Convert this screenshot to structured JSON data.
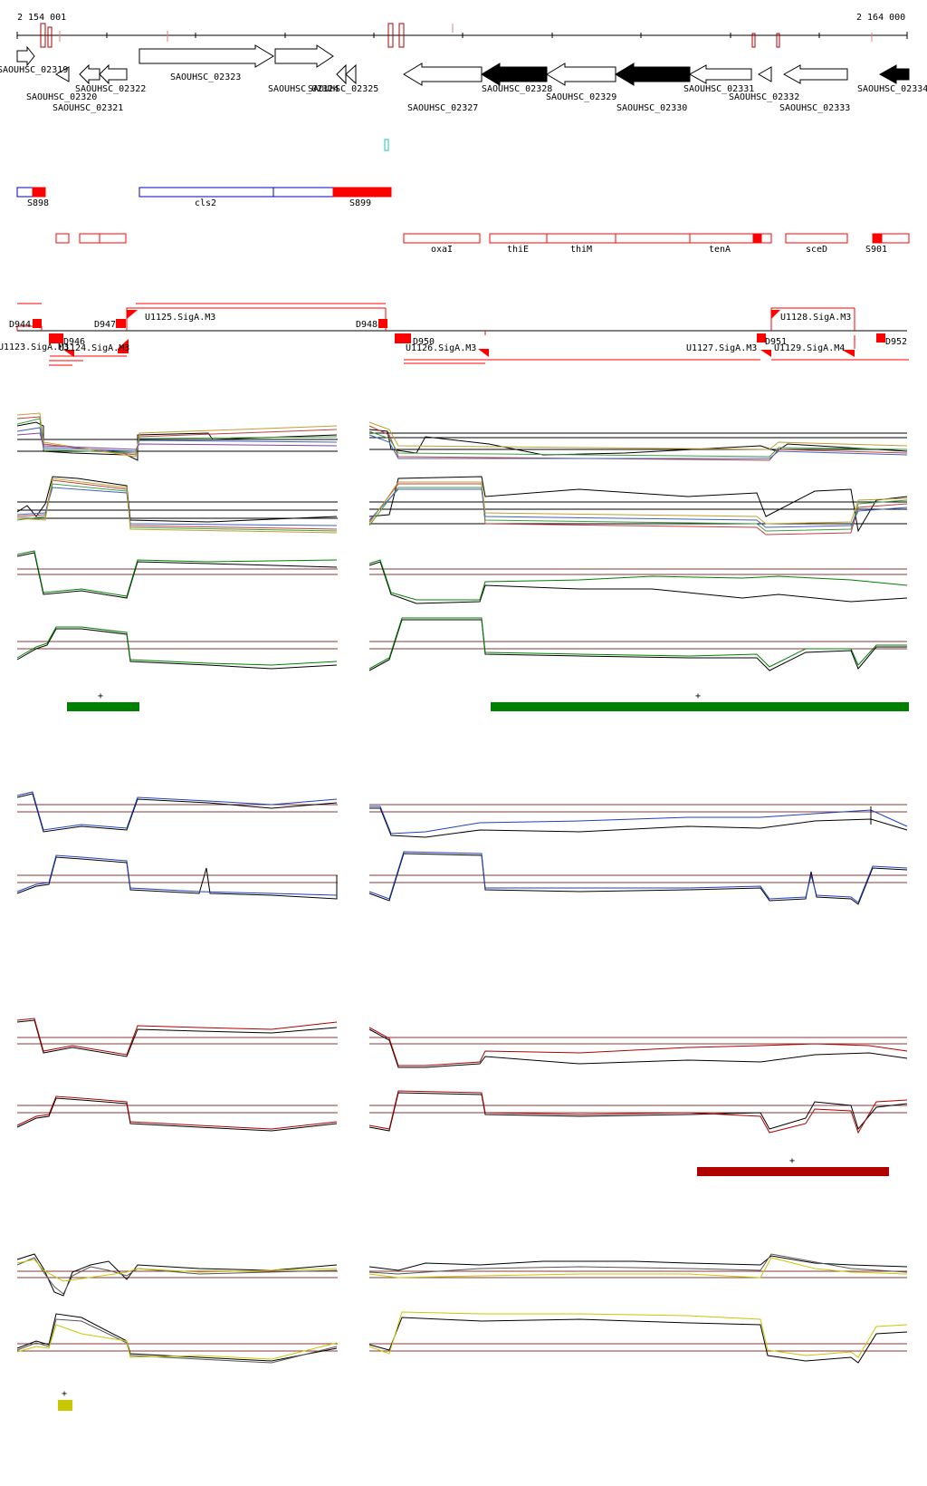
{
  "coords": {
    "start": "2 154 001",
    "end": "2 164 000"
  },
  "genes": [
    {
      "label": "SAOUHSC_02319"
    },
    {
      "label": "SAOUHSC_02320"
    },
    {
      "label": "SAOUHSC_02321"
    },
    {
      "label": "SAOUHSC_02322"
    },
    {
      "label": "SAOUHSC_02323"
    },
    {
      "label": "SAOUHSC_02324"
    },
    {
      "label": "SAOUHSC_02325"
    },
    {
      "label": "SAOUHSC_02327"
    },
    {
      "label": "SAOUHSC_02328"
    },
    {
      "label": "SAOUHSC_02329"
    },
    {
      "label": "SAOUHSC_02330"
    },
    {
      "label": "SAOUHSC_02331"
    },
    {
      "label": "SAOUHSC_02332"
    },
    {
      "label": "SAOUHSC_02333"
    },
    {
      "label": "SAOUHSC_02334"
    }
  ],
  "features": {
    "s898": "S898",
    "cls2": "cls2",
    "s899": "S899",
    "oxaI": "oxaI",
    "thiE": "thiE",
    "thiM": "thiM",
    "tenA": "tenA",
    "sceD": "sceD",
    "s901": "S901"
  },
  "segments": {
    "d944": "D944",
    "d947": "D947",
    "d948": "D948",
    "d951": "D951",
    "d952": "D952",
    "d946": "D946",
    "d950": "D950",
    "u1123": "U1123.SigA.M3",
    "u1124": "U1124.SigA.M3",
    "u1125": "U1125.SigA.M3",
    "u1126": "U1126.SigA.M3",
    "u1127": "U1127.SigA.M3",
    "u1128": "U1128.SigA.M3",
    "u1129": "U1129.SigA.M4"
  },
  "strand_mark": "+",
  "colors": {
    "red": "#ff0000",
    "green": "#008000",
    "blue": "#1f3fbf",
    "darkred": "#b00000",
    "yellow": "#c8c800",
    "brown": "#8b3a3a"
  }
}
